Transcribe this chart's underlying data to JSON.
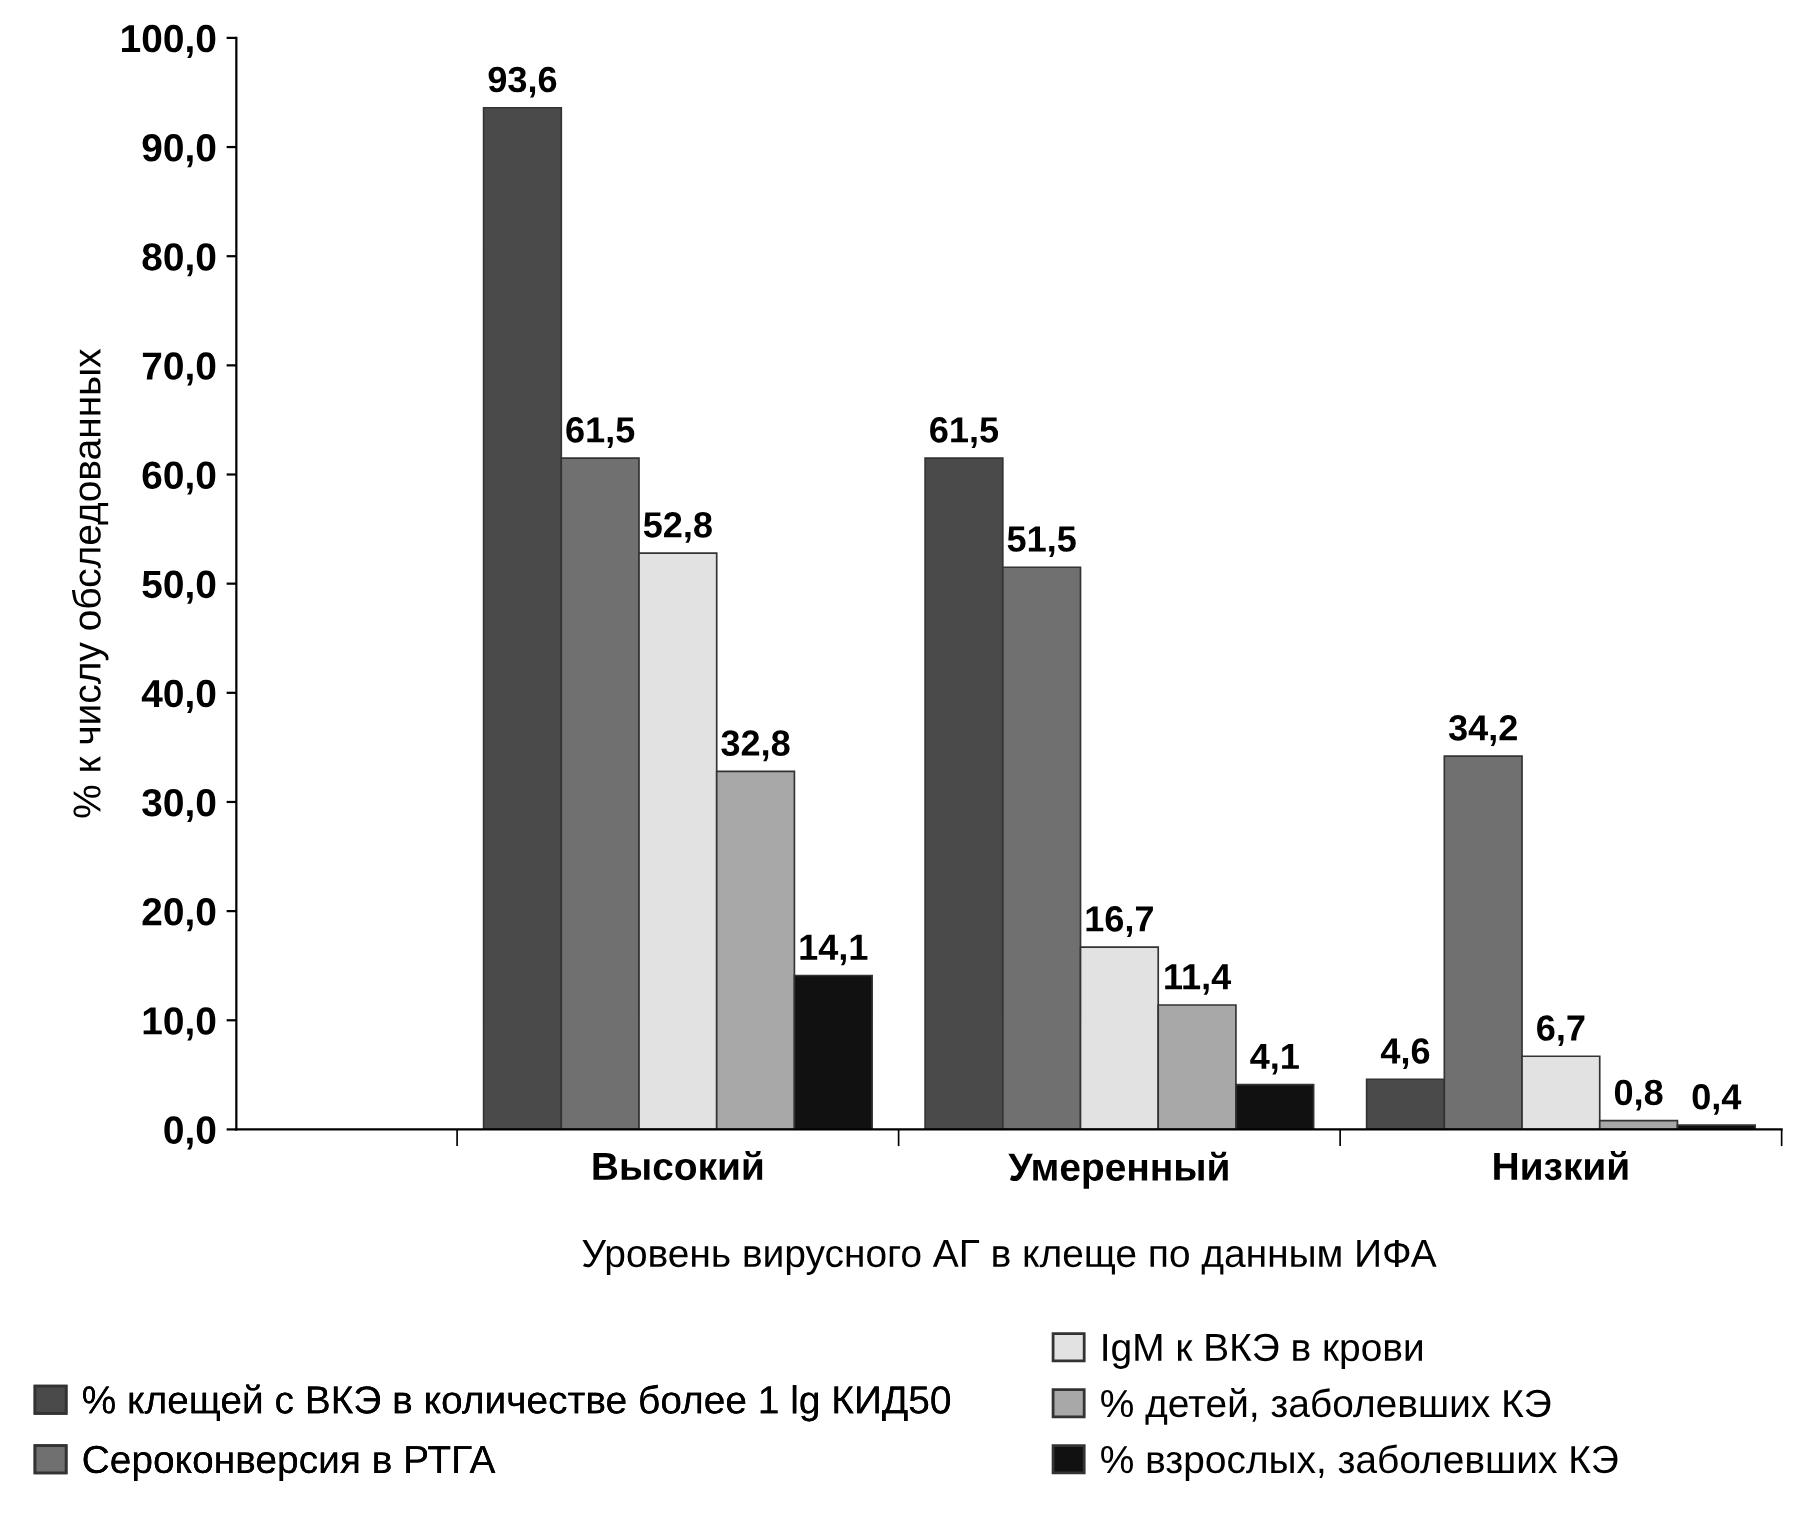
{
  "chart_data": {
    "type": "bar",
    "xlabel": "Уровень вирусного АГ в клеще по данным ИФА",
    "ylabel": "% к числу обследованных",
    "categories": [
      "Высокий",
      "Умеренный",
      "Низкий"
    ],
    "series": [
      {
        "name": "% клещей с ВКЭ в количестве более 1 lg КИД50",
        "color": "#4a4a4a",
        "values": [
          93.6,
          61.5,
          4.6
        ],
        "value_labels": [
          "93,6",
          "61,5",
          "4,6"
        ]
      },
      {
        "name": "Сероконверсия в РТГА",
        "color": "#707070",
        "values": [
          61.5,
          51.5,
          34.2
        ],
        "value_labels": [
          "61,5",
          "51,5",
          "34,2"
        ]
      },
      {
        "name": "IgM к ВКЭ в крови",
        "color": "#e2e2e2",
        "values": [
          52.8,
          16.7,
          6.7
        ],
        "value_labels": [
          "52,8",
          "16,7",
          "6,7"
        ]
      },
      {
        "name": "% детей, заболевших КЭ",
        "color": "#a8a8a8",
        "values": [
          32.8,
          11.4,
          0.8
        ],
        "value_labels": [
          "32,8",
          "11,4",
          "0,8"
        ]
      },
      {
        "name": "% взрослых, заболевших КЭ",
        "color": "#111111",
        "values": [
          14.1,
          4.1,
          0.4
        ],
        "value_labels": [
          "14,1",
          "4,1",
          "0,4"
        ]
      }
    ],
    "ylim": [
      0,
      100
    ],
    "yticks": [
      {
        "value": 0,
        "label": "0,0"
      },
      {
        "value": 10,
        "label": "10,0"
      },
      {
        "value": 20,
        "label": "20,0"
      },
      {
        "value": 30,
        "label": "30,0"
      },
      {
        "value": 40,
        "label": "40,0"
      },
      {
        "value": 50,
        "label": "50,0"
      },
      {
        "value": 60,
        "label": "60,0"
      },
      {
        "value": 70,
        "label": "70,0"
      },
      {
        "value": 80,
        "label": "80,0"
      },
      {
        "value": 90,
        "label": "90,0"
      },
      {
        "value": 100,
        "label": "100,0"
      }
    ],
    "grid": false,
    "legend": "bottom"
  }
}
